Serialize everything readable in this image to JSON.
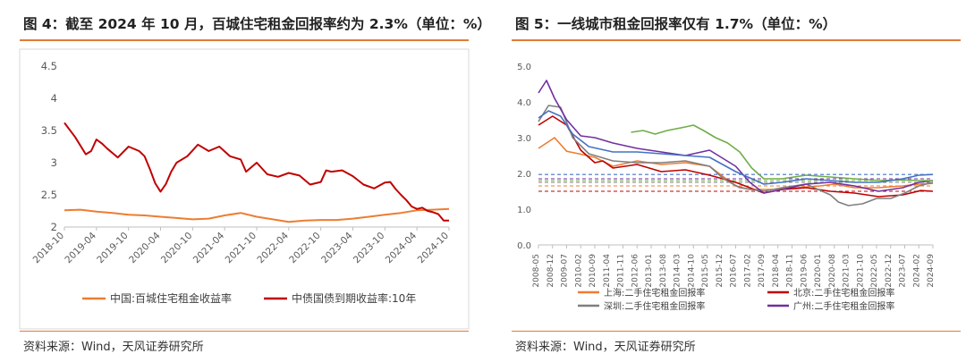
{
  "left": {
    "title": "图 4：截至 2024 年 10 月，百城住宅租金回报率约为 2.3%（单位：%）",
    "source": "资料来源：Wind，天风证券研究所",
    "chart_data": {
      "type": "line",
      "ylim": [
        2,
        4.5
      ],
      "yticks": [
        "2",
        "2.5",
        "3",
        "3.5",
        "4",
        "4.5"
      ],
      "xticks": [
        "2018-10",
        "2019-04",
        "2019-10",
        "2020-04",
        "2020-10",
        "2021-04",
        "2021-10",
        "2022-04",
        "2022-10",
        "2023-04",
        "2023-10",
        "2024-04",
        "2024-10"
      ],
      "series": [
        {
          "name": "中国:百城住宅租金收益率",
          "color": "#ed7d31",
          "x": [
            "2018-10",
            "2019-01",
            "2019-04",
            "2019-07",
            "2019-10",
            "2020-01",
            "2020-04",
            "2020-07",
            "2020-10",
            "2021-01",
            "2021-04",
            "2021-07",
            "2021-10",
            "2022-01",
            "2022-04",
            "2022-07",
            "2022-10",
            "2023-01",
            "2023-04",
            "2023-07",
            "2023-10",
            "2024-01",
            "2024-04",
            "2024-07",
            "2024-10"
          ],
          "y": [
            2.26,
            2.27,
            2.24,
            2.22,
            2.19,
            2.18,
            2.16,
            2.14,
            2.12,
            2.13,
            2.18,
            2.22,
            2.16,
            2.12,
            2.08,
            2.1,
            2.11,
            2.11,
            2.13,
            2.16,
            2.19,
            2.22,
            2.26,
            2.27,
            2.28
          ]
        },
        {
          "name": "中债国债到期收益率:10年",
          "color": "#c00000",
          "x": [
            "2018-10",
            "2018-12",
            "2019-02",
            "2019-03",
            "2019-04",
            "2019-05",
            "2019-06",
            "2019-08",
            "2019-10",
            "2019-12",
            "2020-01",
            "2020-02",
            "2020-03",
            "2020-04",
            "2020-05",
            "2020-06",
            "2020-07",
            "2020-09",
            "2020-11",
            "2021-01",
            "2021-03",
            "2021-05",
            "2021-07",
            "2021-08",
            "2021-10",
            "2021-12",
            "2022-02",
            "2022-04",
            "2022-06",
            "2022-08",
            "2022-10",
            "2022-11",
            "2022-12",
            "2023-02",
            "2023-04",
            "2023-06",
            "2023-08",
            "2023-10",
            "2023-11",
            "2023-12",
            "2024-01",
            "2024-02",
            "2024-03",
            "2024-04",
            "2024-05",
            "2024-06",
            "2024-07",
            "2024-08",
            "2024-09",
            "2024-10"
          ],
          "y": [
            3.62,
            3.4,
            3.13,
            3.18,
            3.36,
            3.3,
            3.22,
            3.08,
            3.25,
            3.18,
            3.1,
            2.9,
            2.68,
            2.55,
            2.67,
            2.86,
            3.0,
            3.1,
            3.28,
            3.18,
            3.25,
            3.1,
            3.05,
            2.86,
            3.0,
            2.82,
            2.78,
            2.84,
            2.8,
            2.66,
            2.7,
            2.88,
            2.86,
            2.88,
            2.79,
            2.66,
            2.6,
            2.69,
            2.7,
            2.59,
            2.5,
            2.42,
            2.32,
            2.28,
            2.3,
            2.25,
            2.23,
            2.2,
            2.1,
            2.1
          ]
        }
      ]
    }
  },
  "right": {
    "title": "图 5：一线城市租金回报率仅有 1.7%（单位：%）",
    "source": "资料来源：Wind，天风证券研究所",
    "chart_data": {
      "type": "line",
      "ylim": [
        0,
        5
      ],
      "yticks": [
        "0.0",
        "1.0",
        "2.0",
        "3.0",
        "4.0",
        "5.0"
      ],
      "xticks": [
        "2008-05",
        "2008-12",
        "2009-07",
        "2010-02",
        "2010-09",
        "2011-04",
        "2011-11",
        "2012-06",
        "2013-01",
        "2013-08",
        "2014-03",
        "2014-10",
        "2015-05",
        "2015-12",
        "2016-07",
        "2017-02",
        "2017-09",
        "2018-04",
        "2018-11",
        "2019-06",
        "2020-01",
        "2020-08",
        "2021-03",
        "2021-10",
        "2022-05",
        "2022-12",
        "2023-07",
        "2024-02",
        "2024-09"
      ],
      "series": [
        {
          "name": "上海:二手住宅租金回报率",
          "color": "#ed7d31",
          "dash_level": 1.65,
          "x": [
            "2008-05",
            "2008-09",
            "2009-01",
            "2009-07",
            "2010-01",
            "2010-09",
            "2011-06",
            "2012-06",
            "2013-06",
            "2014-06",
            "2015-06",
            "2016-01",
            "2016-07",
            "2017-02",
            "2018-01",
            "2019-01",
            "2020-01",
            "2020-08",
            "2021-06",
            "2022-06",
            "2023-06",
            "2024-02",
            "2024-09"
          ],
          "y": [
            2.7,
            2.85,
            3.0,
            2.62,
            2.55,
            2.45,
            2.2,
            2.35,
            2.25,
            2.3,
            2.2,
            1.9,
            1.65,
            1.55,
            1.55,
            1.6,
            1.65,
            1.7,
            1.6,
            1.6,
            1.65,
            1.7,
            1.72
          ]
        },
        {
          "name": "北京:二手住宅租金回报率",
          "color": "#c00000",
          "dash_level": 1.5,
          "x": [
            "2008-05",
            "2008-12",
            "2009-07",
            "2010-02",
            "2010-09",
            "2011-01",
            "2011-06",
            "2012-06",
            "2013-06",
            "2014-06",
            "2015-06",
            "2016-07",
            "2017-09",
            "2018-06",
            "2019-06",
            "2020-06",
            "2021-06",
            "2022-06",
            "2023-06",
            "2024-03",
            "2024-09"
          ],
          "y": [
            3.35,
            3.6,
            3.35,
            2.65,
            2.3,
            2.35,
            2.15,
            2.25,
            2.05,
            2.1,
            1.95,
            1.75,
            1.45,
            1.55,
            1.6,
            1.5,
            1.45,
            1.35,
            1.4,
            1.52,
            1.5
          ]
        },
        {
          "name": "深圳:二手住宅租金回报率",
          "color": "#7f7f7f",
          "dash_level": 1.75,
          "x": [
            "2008-05",
            "2008-10",
            "2009-04",
            "2009-10",
            "2010-06",
            "2011-06",
            "2012-06",
            "2013-06",
            "2014-06",
            "2015-06",
            "2016-01",
            "2016-09",
            "2017-09",
            "2018-06",
            "2019-06",
            "2020-06",
            "2020-10",
            "2021-03",
            "2021-10",
            "2022-05",
            "2022-12",
            "2023-07",
            "2024-02",
            "2024-09"
          ],
          "y": [
            3.45,
            3.9,
            3.85,
            3.0,
            2.55,
            2.35,
            2.3,
            2.3,
            2.35,
            2.2,
            1.85,
            1.6,
            1.5,
            1.6,
            1.7,
            1.4,
            1.2,
            1.1,
            1.15,
            1.3,
            1.3,
            1.45,
            1.65,
            1.75
          ]
        },
        {
          "name": "广州:二手住宅租金回报率",
          "color": "#7030a0",
          "dash_level": 1.85,
          "x": [
            "2008-05",
            "2008-09",
            "2009-01",
            "2009-07",
            "2010-02",
            "2010-09",
            "2011-06",
            "2012-06",
            "2013-06",
            "2014-06",
            "2015-06",
            "2016-07",
            "2017-02",
            "2017-09",
            "2018-06",
            "2019-06",
            "2020-06",
            "2021-06",
            "2022-06",
            "2023-06",
            "2024-02",
            "2024-09"
          ],
          "y": [
            4.25,
            4.6,
            4.1,
            3.5,
            3.05,
            3.0,
            2.85,
            2.7,
            2.6,
            2.5,
            2.65,
            2.2,
            1.75,
            1.45,
            1.55,
            1.7,
            1.75,
            1.65,
            1.5,
            1.6,
            1.75,
            1.8
          ]
        },
        {
          "name": "",
          "color": "#70ad47",
          "dash_level": 1.8,
          "x": [
            "2012-03",
            "2012-09",
            "2013-03",
            "2013-09",
            "2014-06",
            "2014-10",
            "2015-03",
            "2015-09",
            "2016-03",
            "2016-09",
            "2017-03",
            "2017-09",
            "2018-06",
            "2019-06",
            "2020-06",
            "2021-06",
            "2022-06",
            "2023-06",
            "2024-02",
            "2024-09"
          ],
          "y": [
            3.15,
            3.2,
            3.1,
            3.2,
            3.3,
            3.35,
            3.2,
            3.0,
            2.85,
            2.6,
            2.15,
            1.85,
            1.85,
            1.95,
            1.9,
            1.85,
            1.8,
            1.82,
            1.8,
            1.8
          ]
        },
        {
          "name": "",
          "color": "#4472c4",
          "dash_level": 1.97,
          "x": [
            "2008-05",
            "2008-10",
            "2009-04",
            "2009-10",
            "2010-06",
            "2011-06",
            "2012-06",
            "2013-06",
            "2014-06",
            "2015-06",
            "2016-07",
            "2017-09",
            "2018-06",
            "2019-06",
            "2020-06",
            "2021-06",
            "2022-06",
            "2023-06",
            "2024-02",
            "2024-09"
          ],
          "y": [
            3.55,
            3.75,
            3.6,
            3.1,
            2.75,
            2.6,
            2.6,
            2.55,
            2.5,
            2.45,
            2.05,
            1.7,
            1.75,
            1.85,
            1.8,
            1.75,
            1.75,
            1.85,
            1.95,
            1.97
          ]
        }
      ]
    }
  }
}
